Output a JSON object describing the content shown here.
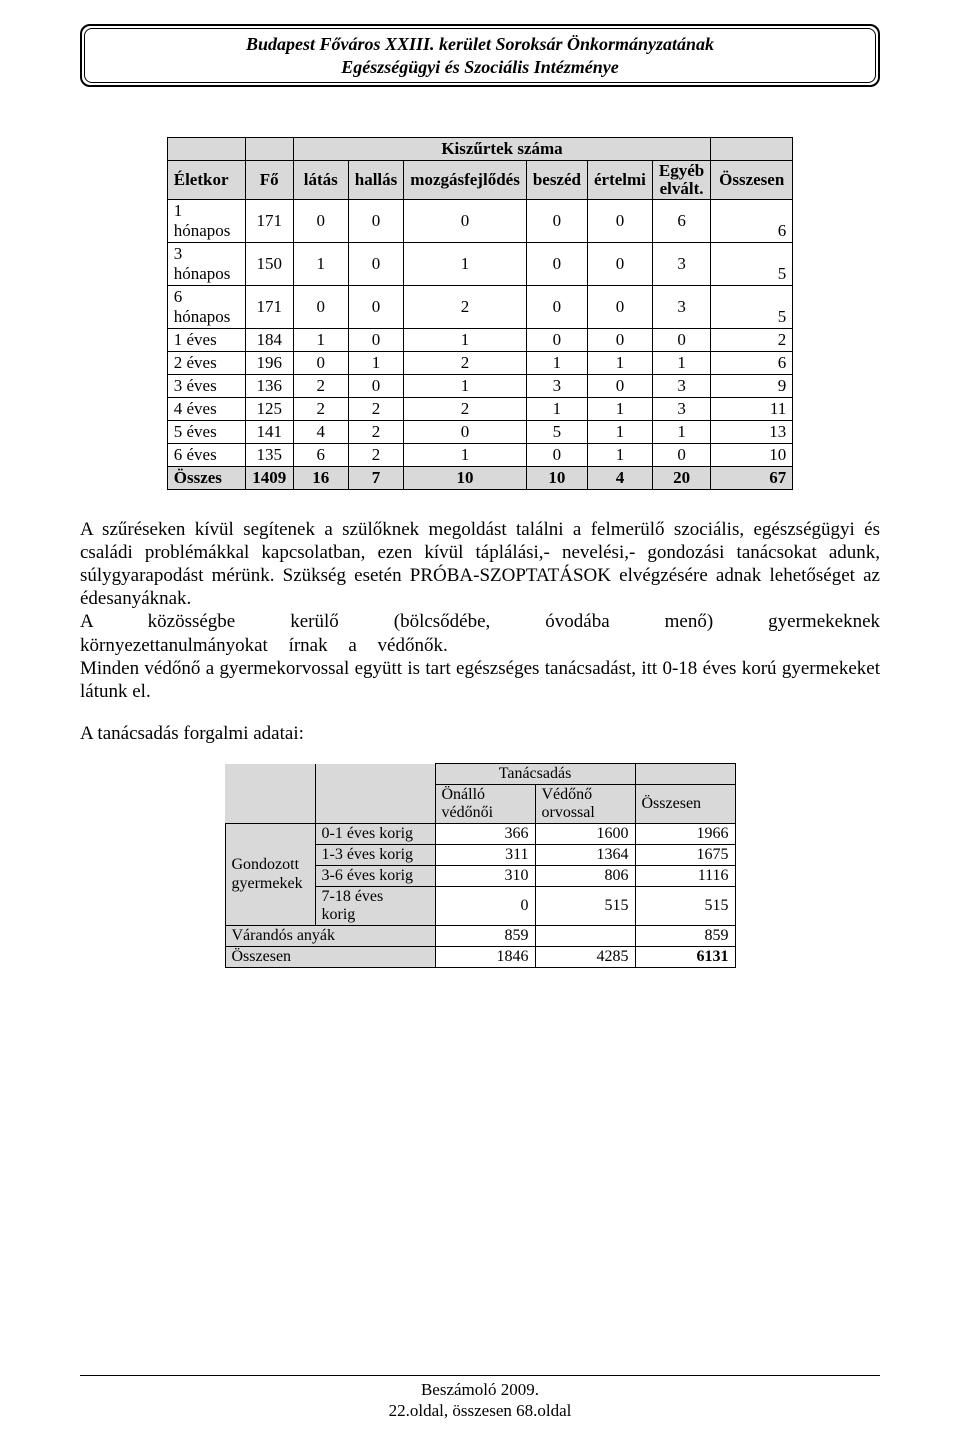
{
  "header": {
    "line1": "Budapest Főváros XXIII. kerület Soroksár Önkormányzatának",
    "line2": "Egészségügyi és Szociális Intézménye"
  },
  "table1": {
    "super_header": "Kiszűrtek száma",
    "columns": [
      "Életkor",
      "Fő",
      "látás",
      "hallás",
      "mozgásfejlődés",
      "beszéd",
      "értelmi",
      "Egyéb elvált.",
      "Összesen"
    ],
    "rows": [
      {
        "age_l1": "1",
        "age_l2": "hónapos",
        "fo": "171",
        "v": [
          "0",
          "0",
          "0",
          "0",
          "0",
          "6"
        ],
        "sum": "6"
      },
      {
        "age_l1": "3",
        "age_l2": "hónapos",
        "fo": "150",
        "v": [
          "1",
          "0",
          "1",
          "0",
          "0",
          "3"
        ],
        "sum": "5"
      },
      {
        "age_l1": "6",
        "age_l2": "hónapos",
        "fo": "171",
        "v": [
          "0",
          "0",
          "2",
          "0",
          "0",
          "3"
        ],
        "sum": "5"
      },
      {
        "age_l1": "1 éves",
        "age_l2": "",
        "fo": "184",
        "v": [
          "1",
          "0",
          "1",
          "0",
          "0",
          "0"
        ],
        "sum": "2"
      },
      {
        "age_l1": "2 éves",
        "age_l2": "",
        "fo": "196",
        "v": [
          "0",
          "1",
          "2",
          "1",
          "1",
          "1"
        ],
        "sum": "6"
      },
      {
        "age_l1": "3 éves",
        "age_l2": "",
        "fo": "136",
        "v": [
          "2",
          "0",
          "1",
          "3",
          "0",
          "3"
        ],
        "sum": "9"
      },
      {
        "age_l1": "4 éves",
        "age_l2": "",
        "fo": "125",
        "v": [
          "2",
          "2",
          "2",
          "1",
          "1",
          "3"
        ],
        "sum": "11"
      },
      {
        "age_l1": "5 éves",
        "age_l2": "",
        "fo": "141",
        "v": [
          "4",
          "2",
          "0",
          "5",
          "1",
          "1"
        ],
        "sum": "13"
      },
      {
        "age_l1": "6 éves",
        "age_l2": "",
        "fo": "135",
        "v": [
          "6",
          "2",
          "1",
          "0",
          "1",
          "0"
        ],
        "sum": "10"
      }
    ],
    "total": {
      "label": "Összes",
      "fo": "1409",
      "v": [
        "16",
        "7",
        "10",
        "10",
        "4",
        "20"
      ],
      "sum": "67"
    }
  },
  "paragraphs": {
    "p1": "A szűréseken kívül segítenek a szülőknek megoldást találni a felmerülő szociális, egészségügyi és családi problémákkal kapcsolatban, ezen kívül táplálási,- nevelési,- gondozási tanácsokat adunk, súlygyarapodást mérünk. Szükség esetén PRÓBA-SZOPTATÁSOK elvégzésére adnak lehetőséget az édesanyáknak.",
    "p2": "A közösségbe kerülő (bölcsődébe, óvodába menő) gyermekeknek környezettanulmányokat írnak a védőnők.",
    "p3": "Minden védőnő a gyermekorvossal együtt is tart egészséges tanácsadást, itt 0-18 éves korú gyermekeket látunk el.",
    "section_label": "A tanácsadás forgalmi adatai:"
  },
  "table2": {
    "super_header": "Tanácsadás",
    "col_labels": {
      "onallo_l1": "Önálló",
      "onallo_l2": "védőnői",
      "vedono_l1": "Védőnő",
      "vedono_l2": "orvossal",
      "osszesen": "Összesen"
    },
    "side_label_l1": "Gondozott",
    "side_label_l2": "gyermekek",
    "rows": [
      {
        "label": "0-1 éves korig",
        "a": "366",
        "b": "1600",
        "c": "1966"
      },
      {
        "label": "1-3 éves korig",
        "a": "311",
        "b": "1364",
        "c": "1675"
      },
      {
        "label": "3-6 éves korig",
        "a": "310",
        "b": "806",
        "c": "1116"
      },
      {
        "label_l1": "7-18 éves",
        "label_l2": "korig",
        "a": "0",
        "b": "515",
        "c": "515"
      }
    ],
    "varandos": {
      "label": "Várandós anyák",
      "a": "859",
      "b": "",
      "c": "859"
    },
    "total": {
      "label": "Összesen",
      "a": "1846",
      "b": "4285",
      "c": "6131"
    }
  },
  "footer": {
    "line1": "Beszámoló 2009.",
    "line2": "22.oldal, összesen 68.oldal"
  }
}
